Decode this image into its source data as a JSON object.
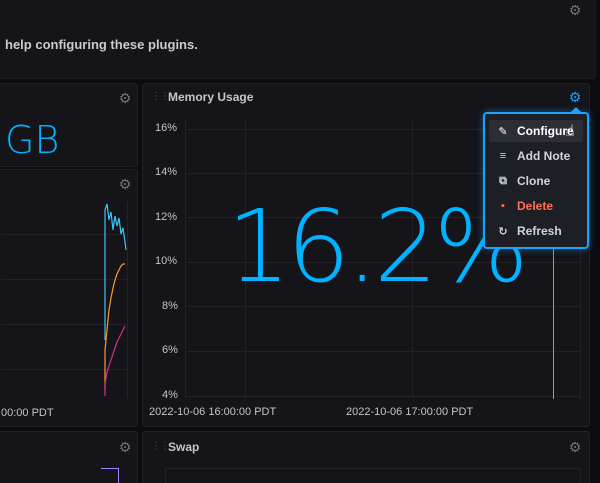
{
  "header": {
    "message": "help configuring these plugins."
  },
  "left_stat_panel": {
    "value_fragment": "GB"
  },
  "left_graph_panel": {
    "x_tick": "00:00 PDT"
  },
  "memory_panel": {
    "title": "Memory Usage",
    "big_value": "16.2%",
    "y_ticks": [
      "16%",
      "14%",
      "12%",
      "10%",
      "8%",
      "6%",
      "4%"
    ],
    "x_ticks": [
      "2022-10-06 16:00:00 PDT",
      "2022-10-06 17:00:00 PDT"
    ],
    "line_color": "#a87cff"
  },
  "swap_panel": {
    "title": "Swap"
  },
  "context_menu": {
    "items": [
      {
        "label": "Configure",
        "icon": "pencil-icon"
      },
      {
        "label": "Add Note",
        "icon": "note-icon"
      },
      {
        "label": "Clone",
        "icon": "clone-icon"
      },
      {
        "label": "Delete",
        "icon": "trash-icon"
      },
      {
        "label": "Refresh",
        "icon": "refresh-icon"
      }
    ]
  },
  "colors": {
    "accent": "#16a4ff",
    "big_value": "#00b2ff",
    "danger": "#ff6f55",
    "series_cyan": "#3fc3f5",
    "series_orange": "#ff9a2e",
    "series_magenta": "#d12e8f"
  }
}
